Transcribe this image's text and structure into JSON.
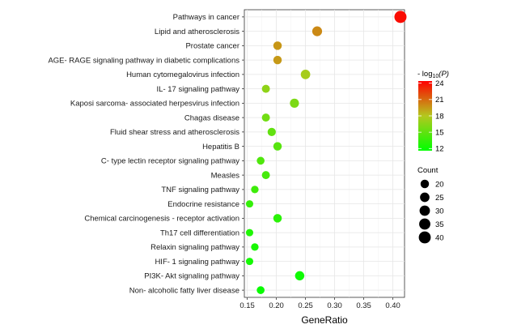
{
  "chart_data": {
    "type": "scatter",
    "xlabel": "GeneRatio",
    "xlim": [
      0.145,
      0.42
    ],
    "xticks": [
      "0.15",
      "0.20",
      "0.25",
      "0.30",
      "0.35",
      "0.40"
    ],
    "xtick_values": [
      0.15,
      0.2,
      0.25,
      0.3,
      0.35,
      0.4
    ],
    "grid": true,
    "categories": [
      "Pathways in cancer",
      "Lipid and atherosclerosis",
      "Prostate cancer",
      "AGE- RAGE signaling pathway in diabetic complications",
      "Human cytomegalovirus infection",
      "IL- 17 signaling pathway",
      "Kaposi sarcoma- associated herpesvirus infection",
      "Chagas disease",
      "Fluid shear stress and atherosclerosis",
      "Hepatitis B",
      "C- type lectin receptor signaling pathway",
      "Measles",
      "TNF signaling pathway",
      "Endocrine resistance",
      "Chemical carcinogenesis -  receptor activation",
      "Th17 cell differentiation",
      "Relaxin signaling pathway",
      "HIF- 1 signaling pathway",
      "PI3K- Akt signaling pathway",
      "Non- alcoholic fatty liver disease"
    ],
    "points": [
      {
        "x": 0.413,
        "count": 41,
        "neglog10p": 24.0
      },
      {
        "x": 0.27,
        "count": 27,
        "neglog10p": 20.0
      },
      {
        "x": 0.202,
        "count": 20,
        "neglog10p": 19.6
      },
      {
        "x": 0.202,
        "count": 20,
        "neglog10p": 19.5
      },
      {
        "x": 0.25,
        "count": 25,
        "neglog10p": 17.5
      },
      {
        "x": 0.182,
        "count": 18,
        "neglog10p": 16.7
      },
      {
        "x": 0.231,
        "count": 23,
        "neglog10p": 16.0
      },
      {
        "x": 0.182,
        "count": 18,
        "neglog10p": 15.6
      },
      {
        "x": 0.192,
        "count": 19,
        "neglog10p": 15.1
      },
      {
        "x": 0.202,
        "count": 20,
        "neglog10p": 14.7
      },
      {
        "x": 0.173,
        "count": 17,
        "neglog10p": 14.4
      },
      {
        "x": 0.182,
        "count": 18,
        "neglog10p": 14.1
      },
      {
        "x": 0.163,
        "count": 16,
        "neglog10p": 13.8
      },
      {
        "x": 0.154,
        "count": 15,
        "neglog10p": 13.5
      },
      {
        "x": 0.202,
        "count": 20,
        "neglog10p": 13.1
      },
      {
        "x": 0.154,
        "count": 15,
        "neglog10p": 12.7
      },
      {
        "x": 0.163,
        "count": 16,
        "neglog10p": 12.5
      },
      {
        "x": 0.154,
        "count": 15,
        "neglog10p": 12.3
      },
      {
        "x": 0.24,
        "count": 24,
        "neglog10p": 12.1
      },
      {
        "x": 0.173,
        "count": 17,
        "neglog10p": 11.9
      }
    ],
    "color_legend": {
      "title_prefix": "- log",
      "title_sub": "10",
      "title_suffix": "(P)",
      "ticks": [
        12,
        15,
        18,
        21,
        24
      ],
      "tick_labels": [
        "12",
        "15",
        "18",
        "21",
        "24"
      ],
      "range": [
        11.6,
        24.4
      ],
      "colors": [
        "#00ff00",
        "#ff0000"
      ]
    },
    "size_legend": {
      "title": "Count",
      "values": [
        20,
        25,
        30,
        35,
        40
      ],
      "labels": [
        "20",
        "25",
        "30",
        "35",
        "40"
      ]
    }
  }
}
